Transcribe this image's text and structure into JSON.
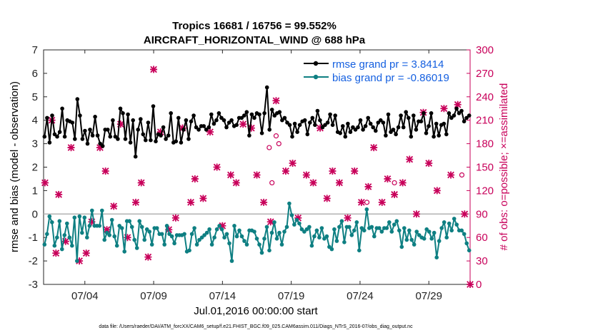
{
  "chart_data": {
    "type": "line",
    "title": "Tropics 16681 / 16756 = 99.552%",
    "subtitle": "AIRCRAFT_HORIZONTAL_WIND @ 688 hPa",
    "xlabel": "Jul.01,2016 00:00:00 start",
    "ylabel": "rmse and bias (model - observation)",
    "ylabel_right": "# of obs: o=possible; ×=assimilated",
    "footer": "data file: /Users/raeder/DAI/ATM_forcXX/CAM6_setup/f.e21.FHIST_BGC.f09_025.CAM6assim.011/Diags_NTrS_2016-07/obs_diag_output.nc",
    "ylim": [
      -3,
      7
    ],
    "yticks": [
      "-3",
      "-2",
      "-1",
      "0",
      "1",
      "2",
      "3",
      "4",
      "5",
      "6",
      "7"
    ],
    "ylim_right": [
      0,
      300
    ],
    "yticks_right": [
      "0",
      "30",
      "60",
      "90",
      "120",
      "150",
      "180",
      "210",
      "240",
      "270",
      "300"
    ],
    "xlim": [
      1,
      32
    ],
    "xticks": [
      {
        "day": 4,
        "label": "07/04"
      },
      {
        "day": 9,
        "label": "07/09"
      },
      {
        "day": 14,
        "label": "07/14"
      },
      {
        "day": 19,
        "label": "07/19"
      },
      {
        "day": 24,
        "label": "07/24"
      },
      {
        "day": 29,
        "label": "07/29"
      }
    ],
    "legend": [
      {
        "name": "rmse",
        "label": "rmse grand pr = 3.8414",
        "color": "#000000"
      },
      {
        "name": "bias",
        "label": "bias grand pr = -0.86019",
        "color": "#0e7f82"
      }
    ],
    "zero_line_color": "#b3b3b3",
    "obs_color": "#c8005a",
    "series": [
      {
        "name": "rmse",
        "color": "#000000",
        "values": [
          3.3,
          4.1,
          3.05,
          4.2,
          3.4,
          3.3,
          3.5,
          4.5,
          3.3,
          4.0,
          3.95,
          3.9,
          3.2,
          4.9,
          4.2,
          3.2,
          3.55,
          3.0,
          3.6,
          3.35,
          4.15,
          3.35,
          3.0,
          2.9,
          3.6,
          3.6,
          3.3,
          4.0,
          3.3,
          3.2,
          4.5,
          4.3,
          3.2,
          4.25,
          3.05,
          4.0,
          2.45,
          3.6,
          4.05,
          3.4,
          3.15,
          3.9,
          3.15,
          4.6,
          3.1,
          3.4,
          3.35,
          3.7,
          3.2,
          3.35,
          4.3,
          3.05,
          3.1,
          4.1,
          3.05,
          3.6,
          4.0,
          3.2,
          3.95,
          4.2,
          3.7,
          3.6,
          3.75,
          3.75,
          3.6,
          3.7,
          4.25,
          3.85,
          4.0,
          4.3,
          4.1,
          4.0,
          3.7,
          3.9,
          4.0,
          3.75,
          3.8,
          4.1,
          4.1,
          4.2,
          4.35,
          3.35,
          4.25,
          4.1,
          4.3,
          4.25,
          3.45,
          4.3,
          5.4,
          3.6,
          4.45,
          4.2,
          4.3,
          4.35,
          4.0,
          4.1,
          3.9,
          3.8,
          3.3,
          3.85,
          3.5,
          3.8,
          3.95,
          4.0,
          3.4,
          3.9,
          4.1,
          3.8,
          4.4,
          4.0,
          3.7,
          3.8,
          3.9,
          4.25,
          3.8,
          4.2,
          3.5,
          3.45,
          3.75,
          3.3,
          3.85,
          3.5,
          3.7,
          3.6,
          3.7,
          4.0,
          3.6,
          3.75,
          4.1,
          3.85,
          3.7,
          3.55,
          3.9,
          4.0,
          3.9,
          3.35,
          4.25,
          3.5,
          3.6,
          3.4,
          3.7,
          4.2,
          3.7,
          4.35,
          4.1,
          3.3,
          4.2,
          3.6,
          3.95,
          3.95,
          4.3,
          3.45,
          3.75,
          4.3,
          3.3,
          3.85,
          3.35,
          3.8,
          3.85,
          3.4,
          4.3,
          4.1,
          4.2,
          4.5,
          4.3,
          4.4,
          3.95,
          4.1,
          4.2
        ]
      },
      {
        "name": "bias",
        "color": "#0e7f82",
        "values": [
          -1.3,
          -0.85,
          -0.1,
          -0.35,
          -1.35,
          -1.0,
          -0.3,
          -1.5,
          -0.9,
          -0.4,
          -1.0,
          -1.35,
          -0.15,
          -2.0,
          -0.1,
          -0.8,
          -0.15,
          -1.0,
          -0.5,
          0.15,
          -0.5,
          -0.5,
          -0.5,
          0.15,
          -1.1,
          -0.8,
          -0.9,
          -0.25,
          -0.95,
          -1.35,
          -0.5,
          -0.6,
          -1.6,
          -0.3,
          -0.3,
          -0.55,
          -1.1,
          -1.45,
          -0.3,
          -0.55,
          -1.1,
          -0.65,
          -0.75,
          -1.3,
          -0.6,
          -0.6,
          -0.85,
          -0.85,
          -1.3,
          -0.5,
          -0.85,
          -0.95,
          -1.25,
          -0.9,
          -0.9,
          -0.9,
          -0.85,
          -1.6,
          -1.55,
          -0.85,
          -0.6,
          -1.3,
          -1.1,
          -1.0,
          -0.9,
          -0.8,
          -0.65,
          -1.3,
          -1.0,
          -0.65,
          -0.5,
          -0.65,
          -1.0,
          -0.85,
          -1.25,
          -2.0,
          -0.5,
          -0.95,
          -0.7,
          -0.95,
          -1.15,
          -1.3,
          -0.7,
          -0.7,
          -0.75,
          -1.05,
          -1.3,
          -1.65,
          -1.05,
          -0.55,
          -1.55,
          -0.8,
          -0.35,
          -1.05,
          -0.8,
          -1.3,
          -0.75,
          -0.55,
          0.45,
          -0.05,
          -0.45,
          -0.25,
          -0.4,
          -0.65,
          -0.75,
          -0.65,
          -0.55,
          -1.35,
          -0.95,
          -0.7,
          -1.0,
          -0.6,
          -1.05,
          -0.95,
          -1.4,
          -1.5,
          -0.65,
          -1.15,
          -0.55,
          -0.3,
          -1.2,
          -0.55,
          -0.55,
          -0.9,
          -0.7,
          -0.35,
          -1.55,
          -0.6,
          -0.7,
          0.2,
          -0.6,
          -0.55,
          -0.95,
          -0.6,
          -0.6,
          -0.75,
          -0.6,
          -0.6,
          -0.35,
          -0.75,
          -0.45,
          -0.3,
          -0.7,
          -1.4,
          -0.6,
          -1.1,
          -0.7,
          -1.1,
          -1.3,
          -0.75,
          -0.9,
          -1.0,
          -1.05,
          -0.65,
          -0.75,
          -1.05,
          -0.8,
          -1.85,
          -1.15,
          -0.6,
          -0.35,
          -1.0,
          -0.4,
          -0.7,
          -0.2,
          -0.45,
          -0.7,
          -0.7,
          -0.85,
          -1.25,
          -1.55
        ]
      }
    ],
    "obs_assimilated": {
      "days": [
        1.1,
        1.6,
        1.9,
        2.1,
        2.6,
        3.0,
        3.6,
        4.1,
        4.5,
        5.1,
        5.5,
        5.6,
        6.1,
        6.6,
        7.1,
        7.7,
        8.1,
        8.6,
        9.0,
        9.5,
        10.1,
        10.6,
        11.1,
        11.7,
        12.0,
        12.6,
        13.1,
        13.6,
        14.0,
        14.6,
        15.0,
        15.5,
        16.1,
        16.5,
        17.0,
        17.5,
        17.9,
        18.6,
        19.1,
        19.5,
        20.1,
        20.6,
        21.1,
        21.6,
        22.0,
        22.5,
        23.1,
        23.6,
        24.1,
        24.6,
        25.0,
        25.6,
        26.0,
        26.5,
        27.1,
        27.6,
        28.1,
        28.6,
        29.0,
        29.6,
        30.1,
        30.6,
        31.1,
        31.6,
        32.0
      ],
      "values": [
        130,
        210,
        40,
        115,
        55,
        175,
        30,
        40,
        80,
        175,
        145,
        70,
        100,
        205,
        60,
        105,
        130,
        35,
        275,
        195,
        70,
        85,
        200,
        105,
        135,
        110,
        195,
        150,
        75,
        140,
        130,
        205,
        200,
        140,
        105,
        80,
        235,
        145,
        155,
        85,
        140,
        130,
        200,
        110,
        145,
        130,
        85,
        145,
        105,
        125,
        175,
        105,
        135,
        115,
        130,
        160,
        90,
        220,
        155,
        120,
        225,
        140,
        230,
        90,
        0
      ]
    },
    "obs_possible": {
      "days": [
        17.4,
        17.6,
        17.9,
        18.1,
        24.5,
        26.5,
        31.4
      ],
      "values": [
        175,
        130,
        190,
        180,
        105,
        130,
        140
      ]
    }
  }
}
